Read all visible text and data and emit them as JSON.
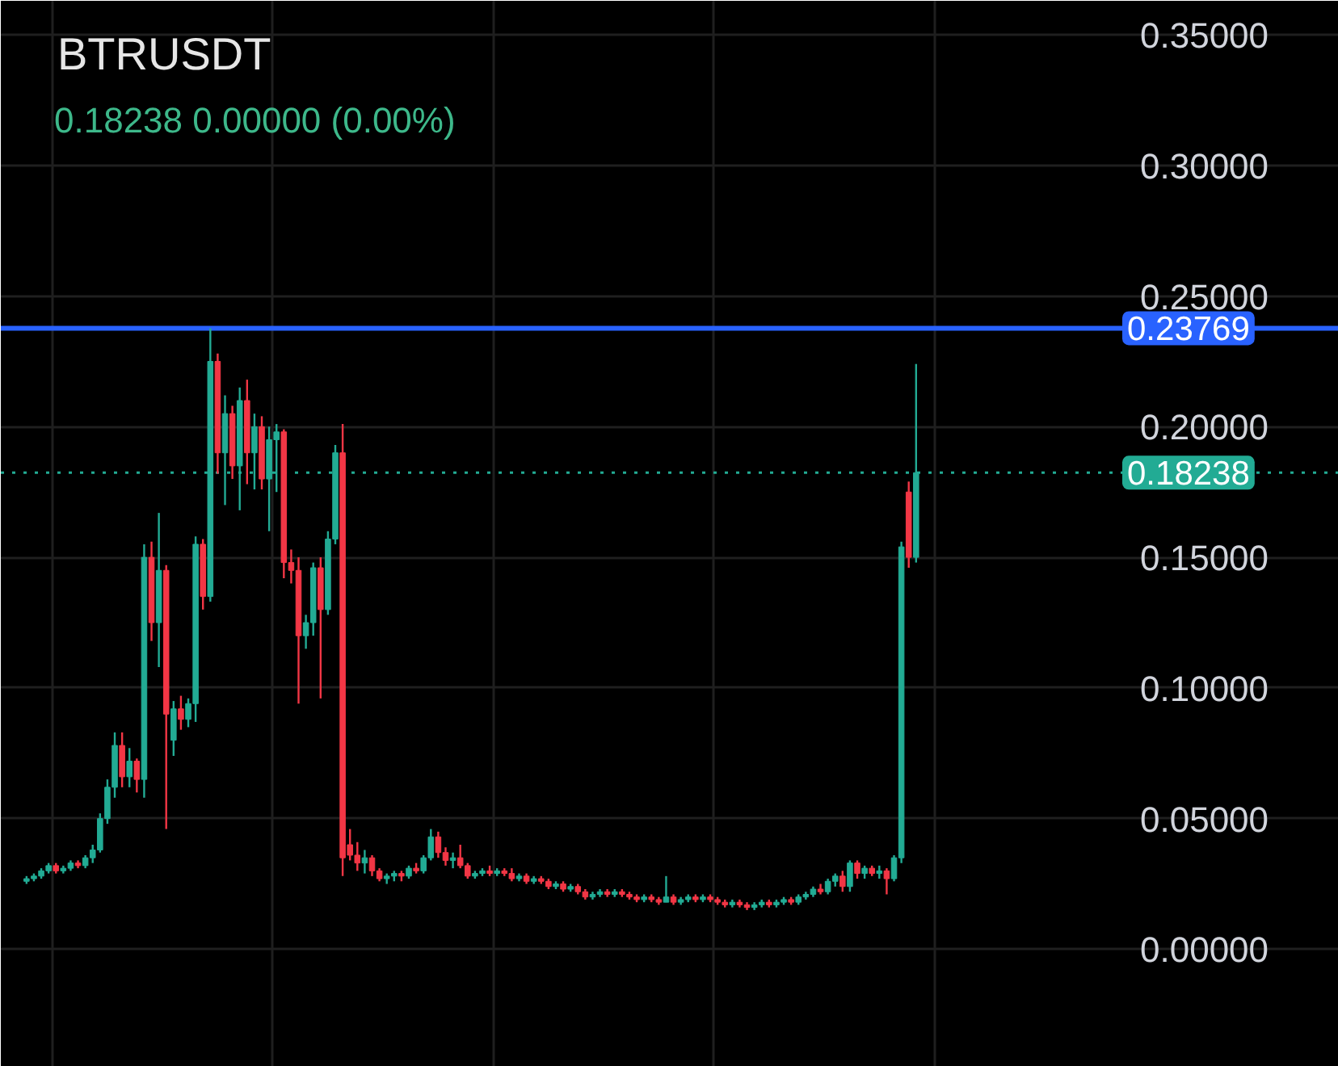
{
  "chart_data": {
    "type": "candlestick",
    "title": "BTRUSDT",
    "subtitle": "0.18238 0.00000 (0.00%)",
    "categories": [
      null,
      null,
      null,
      null,
      null,
      null,
      null,
      null,
      null,
      null,
      null,
      null,
      null,
      null,
      null,
      null,
      null,
      null,
      null,
      null,
      null,
      null,
      null,
      null,
      null,
      null,
      null,
      null,
      null,
      null,
      null,
      null,
      null,
      null,
      null,
      null,
      null,
      null,
      null,
      null,
      null,
      null,
      null,
      null,
      null,
      null,
      null,
      null,
      null,
      null,
      null,
      null,
      null,
      null,
      null,
      null,
      null,
      null,
      null,
      null,
      null,
      null,
      null,
      null,
      null,
      null,
      null,
      null,
      null,
      null,
      null,
      null,
      null,
      null,
      null,
      null,
      null,
      null,
      null,
      null,
      null,
      null,
      null,
      null,
      null,
      null,
      null,
      null,
      null,
      null,
      null,
      null,
      null,
      null,
      null,
      null,
      null,
      null,
      null,
      null,
      null,
      null,
      null,
      null,
      null,
      null,
      null,
      null,
      null,
      null,
      null,
      null,
      null,
      null,
      null,
      null,
      null,
      null,
      null,
      null,
      null,
      null,
      null,
      null,
      null,
      null,
      null,
      null,
      null,
      null,
      null,
      null,
      null,
      null,
      null,
      null,
      null,
      null,
      null,
      null,
      null,
      null,
      null,
      null,
      null,
      null,
      null,
      null,
      null,
      null,
      null,
      null,
      null,
      null,
      null,
      null,
      null,
      null,
      null,
      null,
      null,
      null,
      null,
      null,
      null,
      null,
      null,
      null,
      null,
      null,
      null,
      null,
      null,
      null,
      null,
      null,
      null,
      null,
      null,
      null,
      null,
      null
    ],
    "ohlc": [
      null,
      null,
      null,
      [
        0.026,
        0.028,
        0.025,
        0.027
      ],
      [
        0.027,
        0.029,
        0.026,
        0.028
      ],
      [
        0.028,
        0.031,
        0.027,
        0.03
      ],
      [
        0.03,
        0.033,
        0.029,
        0.032
      ],
      [
        0.032,
        0.033,
        0.029,
        0.03
      ],
      [
        0.03,
        0.032,
        0.029,
        0.031
      ],
      [
        0.031,
        0.034,
        0.03,
        0.033
      ],
      [
        0.033,
        0.034,
        0.031,
        0.032
      ],
      [
        0.032,
        0.036,
        0.031,
        0.035
      ],
      [
        0.035,
        0.04,
        0.033,
        0.038
      ],
      [
        0.038,
        0.052,
        0.037,
        0.05
      ],
      [
        0.05,
        0.065,
        0.048,
        0.062
      ],
      [
        0.062,
        0.083,
        0.058,
        0.078
      ],
      [
        0.078,
        0.083,
        0.062,
        0.066
      ],
      [
        0.066,
        0.077,
        0.062,
        0.072
      ],
      [
        0.072,
        0.073,
        0.06,
        0.065
      ],
      [
        0.065,
        0.155,
        0.058,
        0.15
      ],
      [
        0.15,
        0.156,
        0.118,
        0.125
      ],
      [
        0.125,
        0.167,
        0.108,
        0.145
      ],
      [
        0.145,
        0.147,
        0.046,
        0.09
      ],
      [
        0.08,
        0.095,
        0.074,
        0.092
      ],
      [
        0.092,
        0.097,
        0.084,
        0.088
      ],
      [
        0.088,
        0.096,
        0.085,
        0.094
      ],
      [
        0.094,
        0.158,
        0.087,
        0.155
      ],
      [
        0.155,
        0.157,
        0.13,
        0.135
      ],
      [
        0.135,
        0.23769,
        0.133,
        0.225
      ],
      [
        0.225,
        0.228,
        0.182,
        0.19
      ],
      [
        0.19,
        0.212,
        0.17,
        0.205
      ],
      [
        0.205,
        0.208,
        0.18,
        0.185
      ],
      [
        0.185,
        0.215,
        0.168,
        0.21
      ],
      [
        0.21,
        0.218,
        0.178,
        0.19
      ],
      [
        0.19,
        0.205,
        0.176,
        0.2
      ],
      [
        0.2,
        0.204,
        0.176,
        0.18
      ],
      [
        0.18,
        0.2,
        0.16,
        0.195
      ],
      [
        0.195,
        0.201,
        0.175,
        0.198
      ],
      [
        0.198,
        0.199,
        0.142,
        0.148
      ],
      [
        0.148,
        0.153,
        0.14,
        0.145
      ],
      [
        0.145,
        0.15,
        0.094,
        0.12
      ],
      [
        0.12,
        0.128,
        0.115,
        0.125
      ],
      [
        0.125,
        0.148,
        0.12,
        0.146
      ],
      [
        0.146,
        0.15,
        0.096,
        0.13
      ],
      [
        0.13,
        0.16,
        0.128,
        0.157
      ],
      [
        0.157,
        0.193,
        0.155,
        0.19
      ],
      [
        0.19,
        0.201,
        0.028,
        0.035
      ],
      [
        0.04,
        0.046,
        0.034,
        0.036
      ],
      [
        0.036,
        0.041,
        0.03,
        0.033
      ],
      [
        0.033,
        0.038,
        0.029,
        0.035
      ],
      [
        0.035,
        0.036,
        0.028,
        0.03
      ],
      [
        0.03,
        0.031,
        0.026,
        0.027
      ],
      [
        0.027,
        0.029,
        0.025,
        0.028
      ],
      [
        0.028,
        0.03,
        0.026,
        0.029
      ],
      [
        0.029,
        0.03,
        0.026,
        0.028
      ],
      [
        0.028,
        0.032,
        0.027,
        0.031
      ],
      [
        0.031,
        0.033,
        0.029,
        0.03
      ],
      [
        0.03,
        0.036,
        0.029,
        0.035
      ],
      [
        0.035,
        0.046,
        0.034,
        0.043
      ],
      [
        0.043,
        0.045,
        0.035,
        0.037
      ],
      [
        0.037,
        0.039,
        0.032,
        0.034
      ],
      [
        0.034,
        0.037,
        0.031,
        0.035
      ],
      [
        0.035,
        0.04,
        0.031,
        0.032
      ],
      [
        0.032,
        0.033,
        0.027,
        0.028
      ],
      [
        0.028,
        0.03,
        0.027,
        0.029
      ],
      [
        0.029,
        0.031,
        0.028,
        0.03
      ],
      [
        0.03,
        0.032,
        0.028,
        0.029
      ],
      [
        0.029,
        0.031,
        0.028,
        0.03
      ],
      [
        0.03,
        0.031,
        0.028,
        0.029
      ],
      [
        0.029,
        0.031,
        0.026,
        0.027
      ],
      [
        0.027,
        0.029,
        0.026,
        0.028
      ],
      [
        0.028,
        0.029,
        0.025,
        0.026
      ],
      [
        0.026,
        0.028,
        0.025,
        0.027
      ],
      [
        0.027,
        0.028,
        0.025,
        0.026
      ],
      [
        0.026,
        0.027,
        0.023,
        0.024
      ],
      [
        0.024,
        0.026,
        0.023,
        0.025
      ],
      [
        0.025,
        0.026,
        0.022,
        0.023
      ],
      [
        0.023,
        0.025,
        0.022,
        0.024
      ],
      [
        0.024,
        0.025,
        0.021,
        0.022
      ],
      [
        0.022,
        0.023,
        0.019,
        0.02
      ],
      [
        0.02,
        0.022,
        0.019,
        0.021
      ],
      [
        0.021,
        0.023,
        0.02,
        0.022
      ],
      [
        0.022,
        0.023,
        0.02,
        0.021
      ],
      [
        0.021,
        0.023,
        0.02,
        0.022
      ],
      [
        0.022,
        0.023,
        0.02,
        0.021
      ],
      [
        0.021,
        0.022,
        0.019,
        0.02
      ],
      [
        0.02,
        0.021,
        0.018,
        0.019
      ],
      [
        0.019,
        0.021,
        0.018,
        0.02
      ],
      [
        0.02,
        0.021,
        0.018,
        0.019
      ],
      [
        0.019,
        0.02,
        0.017,
        0.018
      ],
      [
        0.018,
        0.028,
        0.018,
        0.02
      ],
      [
        0.02,
        0.021,
        0.017,
        0.018
      ],
      [
        0.018,
        0.02,
        0.017,
        0.019
      ],
      [
        0.019,
        0.021,
        0.018,
        0.02
      ],
      [
        0.02,
        0.021,
        0.018,
        0.019
      ],
      [
        0.019,
        0.021,
        0.018,
        0.02
      ],
      [
        0.02,
        0.021,
        0.018,
        0.019
      ],
      [
        0.019,
        0.02,
        0.017,
        0.018
      ],
      [
        0.018,
        0.019,
        0.016,
        0.017
      ],
      [
        0.017,
        0.019,
        0.016,
        0.018
      ],
      [
        0.018,
        0.019,
        0.016,
        0.017
      ],
      [
        0.017,
        0.018,
        0.015,
        0.016
      ],
      [
        0.016,
        0.018,
        0.015,
        0.017
      ],
      [
        0.017,
        0.019,
        0.016,
        0.018
      ],
      [
        0.018,
        0.019,
        0.016,
        0.017
      ],
      [
        0.017,
        0.019,
        0.016,
        0.018
      ],
      [
        0.018,
        0.02,
        0.017,
        0.019
      ],
      [
        0.019,
        0.02,
        0.017,
        0.018
      ],
      [
        0.018,
        0.021,
        0.017,
        0.02
      ],
      [
        0.02,
        0.022,
        0.019,
        0.021
      ],
      [
        0.021,
        0.024,
        0.02,
        0.023
      ],
      [
        0.023,
        0.025,
        0.021,
        0.022
      ],
      [
        0.022,
        0.027,
        0.021,
        0.026
      ],
      [
        0.026,
        0.029,
        0.024,
        0.028
      ],
      [
        0.028,
        0.03,
        0.022,
        0.024
      ],
      [
        0.024,
        0.034,
        0.022,
        0.033
      ],
      [
        0.033,
        0.034,
        0.027,
        0.029
      ],
      [
        0.029,
        0.032,
        0.027,
        0.031
      ],
      [
        0.031,
        0.032,
        0.028,
        0.029
      ],
      [
        0.029,
        0.032,
        0.027,
        0.03
      ],
      [
        0.03,
        0.031,
        0.021,
        0.027
      ],
      [
        0.027,
        0.036,
        0.026,
        0.035
      ],
      [
        0.035,
        0.156,
        0.033,
        0.154
      ],
      [
        0.175,
        0.179,
        0.146,
        0.15
      ],
      [
        0.15,
        0.224,
        0.148,
        0.18238
      ],
      null,
      null,
      null,
      null,
      null,
      null,
      null,
      null,
      null,
      null,
      null,
      null,
      null,
      null,
      null,
      null,
      null,
      null,
      null,
      null,
      null,
      null,
      null,
      null,
      null,
      null,
      null,
      null,
      null,
      null,
      null,
      null,
      null,
      null,
      null,
      null,
      null,
      null,
      null,
      null,
      null,
      null,
      null,
      null,
      null,
      null,
      null,
      null,
      null,
      null,
      null,
      null,
      null,
      null,
      null,
      null,
      null
    ],
    "colors": [
      null,
      null,
      null,
      "#22ab94",
      "#22ab94",
      "#22ab94",
      "#22ab94",
      "#f23645",
      "#22ab94",
      "#22ab94",
      "#f23645",
      "#22ab94",
      "#22ab94",
      "#22ab94",
      "#22ab94",
      "#22ab94",
      "#f23645",
      "#22ab94",
      "#f23645",
      "#22ab94",
      "#f23645",
      "#22ab94",
      "#f23645",
      "#22ab94",
      "#f23645",
      "#22ab94",
      "#22ab94",
      "#f23645",
      "#22ab94",
      "#f23645",
      "#22ab94",
      "#f23645",
      "#22ab94",
      "#f23645",
      "#22ab94",
      "#f23645",
      "#22ab94",
      "#22ab94",
      "#f23645",
      "#f23645",
      "#f23645",
      "#22ab94",
      "#22ab94",
      "#f23645",
      "#22ab94",
      "#22ab94",
      "#f23645",
      "#f23645",
      "#f23645",
      "#22ab94",
      "#f23645",
      "#f23645",
      "#22ab94",
      "#22ab94",
      "#f23645",
      "#22ab94",
      "#f23645",
      "#22ab94",
      "#22ab94",
      "#f23645",
      "#f23645",
      "#22ab94",
      "#f23645",
      "#f23645",
      "#22ab94",
      "#22ab94",
      "#f23645",
      "#22ab94",
      "#f23645",
      "#f23645",
      "#22ab94",
      "#f23645",
      "#22ab94",
      "#f23645",
      "#f23645",
      "#22ab94",
      "#f23645",
      "#22ab94",
      "#f23645",
      "#f23645",
      "#22ab94",
      "#22ab94",
      "#f23645",
      "#22ab94",
      "#f23645",
      "#f23645",
      "#f23645",
      "#22ab94",
      "#f23645",
      "#f23645",
      "#22ab94",
      "#f23645",
      "#22ab94",
      "#22ab94",
      "#f23645",
      "#22ab94",
      "#f23645",
      "#f23645",
      "#f23645",
      "#22ab94",
      "#f23645",
      "#f23645",
      "#22ab94",
      "#22ab94",
      "#f23645",
      "#22ab94",
      "#22ab94",
      "#f23645",
      "#22ab94",
      "#22ab94",
      "#22ab94",
      "#f23645",
      "#22ab94",
      "#22ab94",
      "#f23645",
      "#22ab94",
      "#f23645",
      "#22ab94",
      "#f23645",
      "#22ab94",
      "#f23645",
      "#22ab94",
      "#22ab94",
      "#f23645",
      "#22ab94",
      null,
      null,
      null,
      null,
      null,
      null,
      null,
      null,
      null,
      null,
      null,
      null,
      null,
      null,
      null,
      null,
      null,
      null,
      null,
      null,
      null,
      null,
      null,
      null,
      null,
      null,
      null,
      null,
      null,
      null,
      null,
      null,
      null,
      null,
      null,
      null,
      null,
      null,
      null,
      null,
      null,
      null,
      null,
      null,
      null,
      null,
      null,
      null,
      null,
      null,
      null,
      null,
      null,
      null,
      null,
      null,
      null
    ],
    "ylim": [
      -0.045,
      0.363
    ],
    "yticks": [
      {
        "value": 0.0,
        "label": "0.00000"
      },
      {
        "value": 0.05,
        "label": "0.05000"
      },
      {
        "value": 0.1,
        "label": "0.10000"
      },
      {
        "value": 0.15,
        "label": "0.15000"
      },
      {
        "value": 0.2,
        "label": "0.20000"
      },
      {
        "value": 0.25,
        "label": "0.25000"
      },
      {
        "value": 0.3,
        "label": "0.30000"
      },
      {
        "value": 0.35,
        "label": "0.35000"
      }
    ],
    "ref_lines": [
      {
        "axis": "y",
        "value": 0.23769,
        "label": "0.23769",
        "color": "#2962ff",
        "line_style": "solid"
      },
      {
        "axis": "y",
        "value": 0.18238,
        "label": "0.18238",
        "color": "#22ab94",
        "line_style": "dotted"
      }
    ],
    "grid": true,
    "tick_labels": "y"
  }
}
